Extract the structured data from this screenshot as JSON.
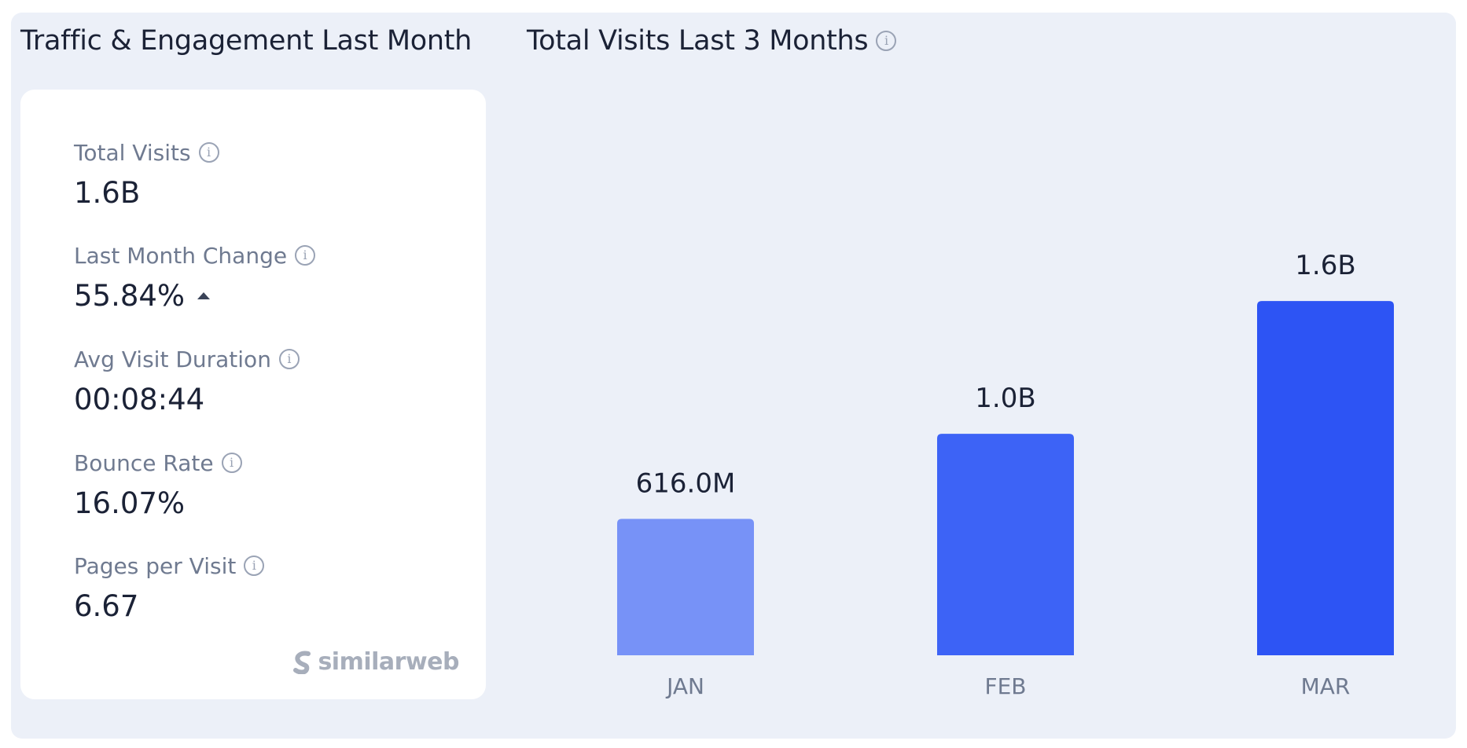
{
  "left_section": {
    "title": "Traffic & Engagement Last Month",
    "metrics": [
      {
        "label": "Total Visits",
        "value": "1.6B"
      },
      {
        "label": "Last Month Change",
        "value": "55.84%",
        "trend": "up"
      },
      {
        "label": "Avg Visit Duration",
        "value": "00:08:44"
      },
      {
        "label": "Bounce Rate",
        "value": "16.07%"
      },
      {
        "label": "Pages per Visit",
        "value": "6.67"
      }
    ],
    "brand": "similarweb"
  },
  "icons": {
    "info": "info-icon",
    "trend_up": "caret-up-icon",
    "brand_logo": "similarweb-logo-icon"
  },
  "chart_data": {
    "type": "bar",
    "title": "Total Visits Last 3 Months",
    "categories": [
      "JAN",
      "FEB",
      "MAR"
    ],
    "values": [
      616000000,
      1000000000,
      1600000000
    ],
    "value_labels": [
      "616.0M",
      "1.0B",
      "1.6B"
    ],
    "colors": [
      "#7792f7",
      "#3d63f6",
      "#2d54f4"
    ],
    "xlabel": "",
    "ylabel": "",
    "ylim": [
      0,
      1800000000
    ],
    "grid": false,
    "legend": "none"
  },
  "colors": {
    "panel_background": "#ecf0f8",
    "card_background": "#ffffff",
    "text_primary": "#1b2236",
    "text_secondary": "#6f7a90"
  }
}
